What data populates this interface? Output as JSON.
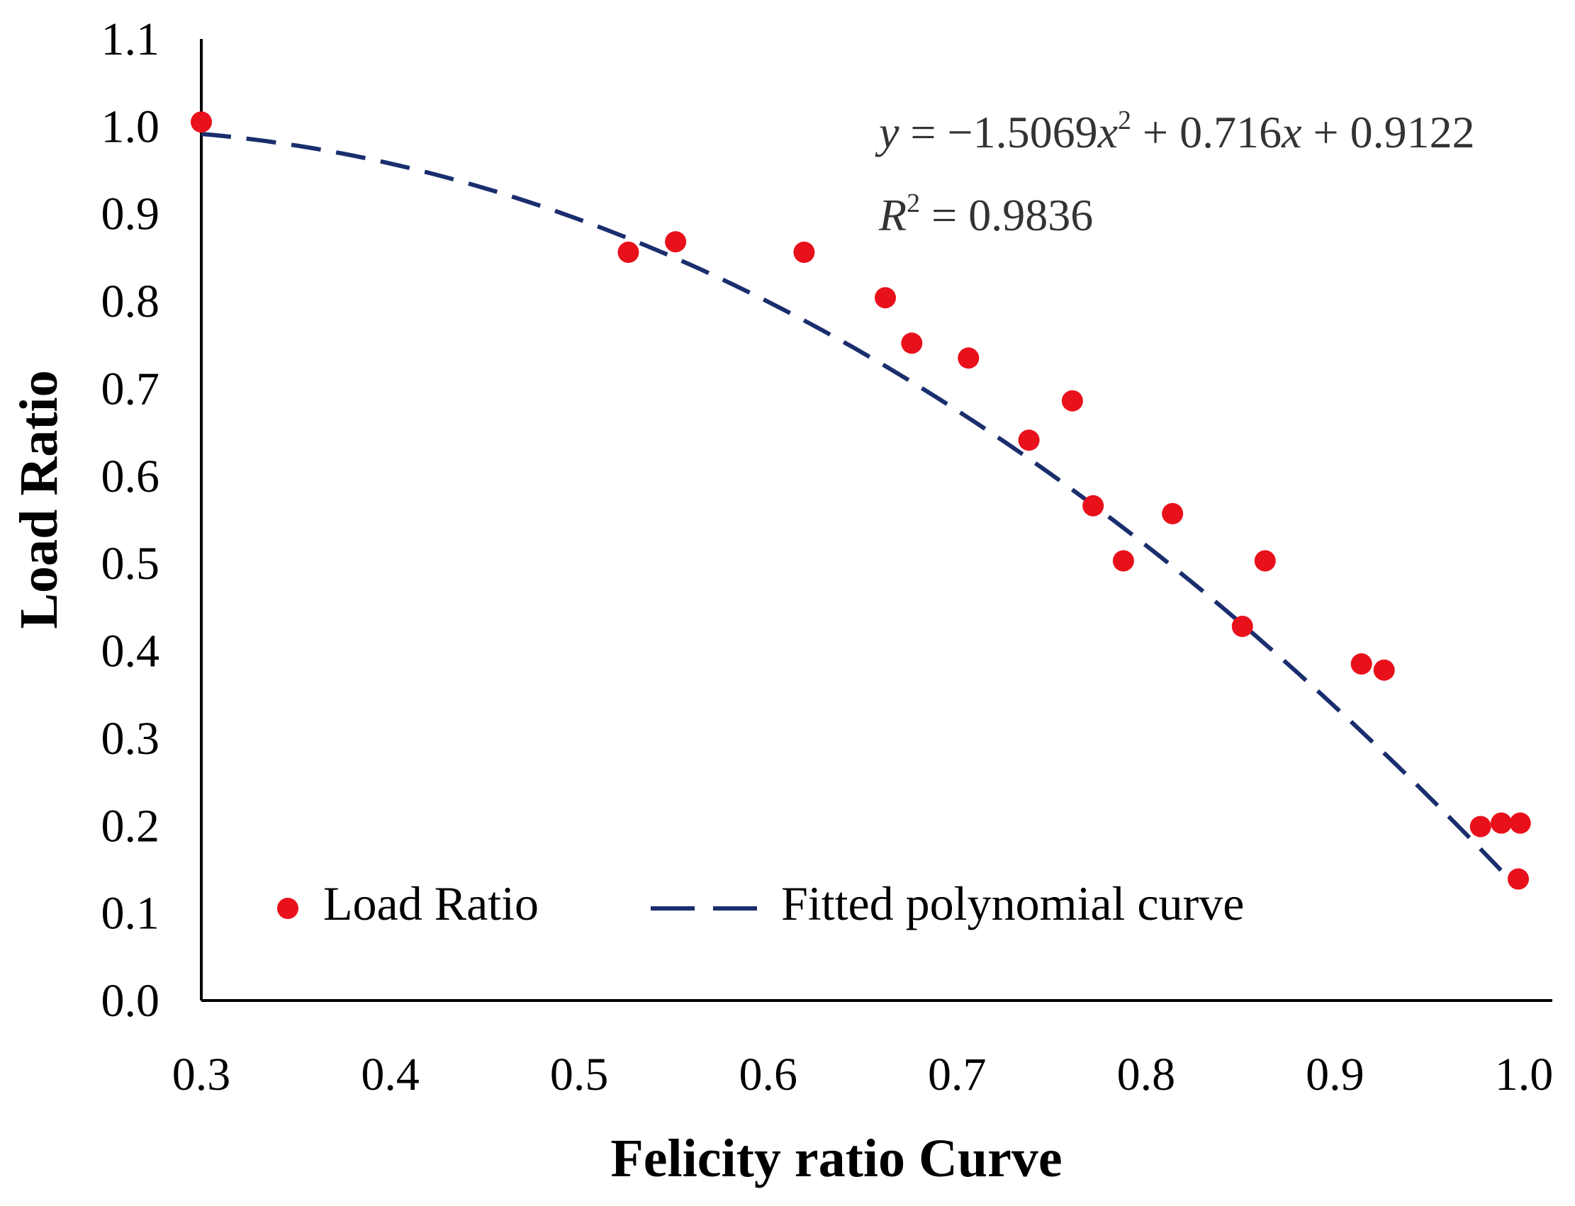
{
  "chart_data": {
    "type": "scatter",
    "title": "",
    "xlabel": "Felicity ratio Curve",
    "ylabel": "Load Ratio",
    "xlim": [
      0.3,
      1.0
    ],
    "ylim": [
      0.0,
      1.1
    ],
    "x_ticks": [
      "0.3",
      "0.4",
      "0.5",
      "0.6",
      "0.7",
      "0.8",
      "0.9",
      "1.0"
    ],
    "y_ticks": [
      "0.0",
      "0.1",
      "0.2",
      "0.3",
      "0.4",
      "0.5",
      "0.6",
      "0.7",
      "0.8",
      "0.9",
      "1.0",
      "1.1"
    ],
    "grid": false,
    "legend_position": "bottom-left",
    "series": [
      {
        "name": "Load Ratio",
        "kind": "scatter",
        "color": "#e8101a",
        "points": [
          {
            "x": 0.3,
            "y": 1.005
          },
          {
            "x": 0.526,
            "y": 0.856
          },
          {
            "x": 0.551,
            "y": 0.868
          },
          {
            "x": 0.619,
            "y": 0.856
          },
          {
            "x": 0.662,
            "y": 0.804
          },
          {
            "x": 0.676,
            "y": 0.752
          },
          {
            "x": 0.706,
            "y": 0.735
          },
          {
            "x": 0.738,
            "y": 0.641
          },
          {
            "x": 0.761,
            "y": 0.686
          },
          {
            "x": 0.772,
            "y": 0.566
          },
          {
            "x": 0.788,
            "y": 0.503
          },
          {
            "x": 0.814,
            "y": 0.557
          },
          {
            "x": 0.851,
            "y": 0.428
          },
          {
            "x": 0.863,
            "y": 0.503
          },
          {
            "x": 0.914,
            "y": 0.385
          },
          {
            "x": 0.926,
            "y": 0.378
          },
          {
            "x": 0.977,
            "y": 0.199
          },
          {
            "x": 0.988,
            "y": 0.203
          },
          {
            "x": 0.998,
            "y": 0.203
          },
          {
            "x": 0.997,
            "y": 0.139
          }
        ]
      },
      {
        "name": "Fitted polynomial curve",
        "kind": "dashed-line",
        "color": "#1a2e6e",
        "coefficients": {
          "a": -1.5069,
          "b": 0.716,
          "c": 0.9122
        },
        "x_range": [
          0.3,
          0.99
        ]
      }
    ],
    "annotations": {
      "equation": {
        "y": "y",
        "eq1": " = −1.5069",
        "x1": "x",
        "exp2": "2",
        "eq2": " + 0.716",
        "x2": "x",
        "eq3": " + 0.9122"
      },
      "r_squared": {
        "R": "R",
        "exp2": "2",
        "eq": " = 0.9836"
      }
    }
  }
}
